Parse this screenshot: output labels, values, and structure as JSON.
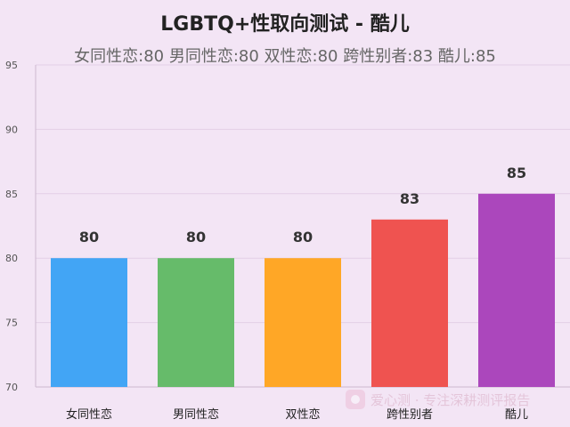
{
  "chart_data": {
    "type": "bar",
    "title": "LGBTQ+性取向测试 - 酷儿",
    "subtitle": "女同性恋:80 男同性恋:80 双性恋:80 跨性别者:83 酷儿:85",
    "categories": [
      "女同性恋",
      "男同性恋",
      "双性恋",
      "跨性别者",
      "酷儿"
    ],
    "values": [
      80,
      80,
      80,
      83,
      85
    ],
    "colors": [
      "#42a5f5",
      "#66bb6a",
      "#ffa726",
      "#ef5350",
      "#ab47bc"
    ],
    "ylim": [
      70,
      95
    ],
    "yticks": [
      70,
      75,
      80,
      85,
      90,
      95
    ],
    "xlabel": "",
    "ylabel": "",
    "grid": true,
    "data_labels": true
  },
  "watermark": {
    "icon": "heart-logo-icon",
    "text": "爱心测 · 专注深耕测评报告"
  }
}
